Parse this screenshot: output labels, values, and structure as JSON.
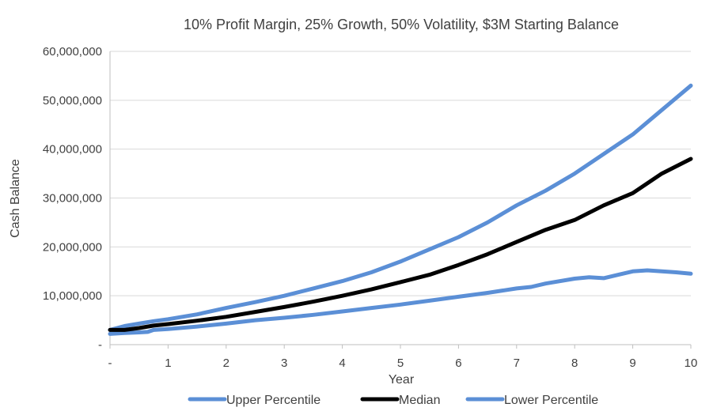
{
  "chart_data": {
    "type": "line",
    "title": "10% Profit Margin, 25% Growth, 50% Volatility, $3M Starting Balance",
    "xlabel": "Year",
    "ylabel": "Cash Balance",
    "xlim": [
      0,
      10
    ],
    "ylim": [
      0,
      60000000
    ],
    "x_tick_labels": [
      "-",
      "1",
      "2",
      "3",
      "4",
      "5",
      "6",
      "7",
      "8",
      "9",
      "10"
    ],
    "y_tick_labels": [
      "-",
      "10,000,000",
      "20,000,000",
      "30,000,000",
      "40,000,000",
      "50,000,000",
      "60,000,000"
    ],
    "grid": "horizontal",
    "legend_position": "bottom",
    "colors": {
      "upper": "#5b8fd6",
      "median": "#000000",
      "lower": "#5b8fd6",
      "gridline": "#d9d9d9",
      "axis": "#bfbfbf"
    },
    "series": [
      {
        "name": "Upper Percentile",
        "color": "#5b8fd6",
        "x": [
          0,
          0.25,
          0.5,
          0.75,
          1,
          1.5,
          2,
          2.5,
          3,
          3.5,
          4,
          4.5,
          5,
          5.5,
          6,
          6.5,
          7,
          7.5,
          8,
          8.5,
          9,
          9.5,
          10
        ],
        "y": [
          3000000,
          3800000,
          4300000,
          4800000,
          5200000,
          6200000,
          7500000,
          8700000,
          10000000,
          11500000,
          13000000,
          14800000,
          17000000,
          19500000,
          22000000,
          25000000,
          28500000,
          31500000,
          35000000,
          39000000,
          43000000,
          48000000,
          53000000
        ]
      },
      {
        "name": "Median",
        "color": "#000000",
        "x": [
          0,
          0.25,
          0.5,
          0.75,
          1,
          1.5,
          2,
          2.5,
          3,
          3.5,
          4,
          4.5,
          5,
          5.5,
          6,
          6.5,
          7,
          7.5,
          8,
          8.5,
          9,
          9.5,
          10
        ],
        "y": [
          3000000,
          3000000,
          3400000,
          3900000,
          4200000,
          4900000,
          5700000,
          6700000,
          7700000,
          8800000,
          10000000,
          11300000,
          12800000,
          14300000,
          16300000,
          18500000,
          21000000,
          23500000,
          25500000,
          28500000,
          31000000,
          35000000,
          38000000
        ]
      },
      {
        "name": "Lower Percentile",
        "color": "#5b8fd6",
        "x": [
          0,
          0.25,
          0.5,
          0.65,
          0.75,
          1,
          1.5,
          2,
          2.5,
          3,
          3.5,
          4,
          4.5,
          5,
          5.5,
          6,
          6.5,
          7,
          7.25,
          7.5,
          8,
          8.25,
          8.5,
          8.75,
          9,
          9.25,
          9.5,
          9.75,
          10
        ],
        "y": [
          2200000,
          2400000,
          2500000,
          2600000,
          3000000,
          3200000,
          3700000,
          4300000,
          5000000,
          5500000,
          6100000,
          6800000,
          7500000,
          8200000,
          9000000,
          9800000,
          10600000,
          11500000,
          11800000,
          12500000,
          13500000,
          13800000,
          13600000,
          14300000,
          15000000,
          15200000,
          15000000,
          14800000,
          14500000
        ]
      }
    ]
  }
}
